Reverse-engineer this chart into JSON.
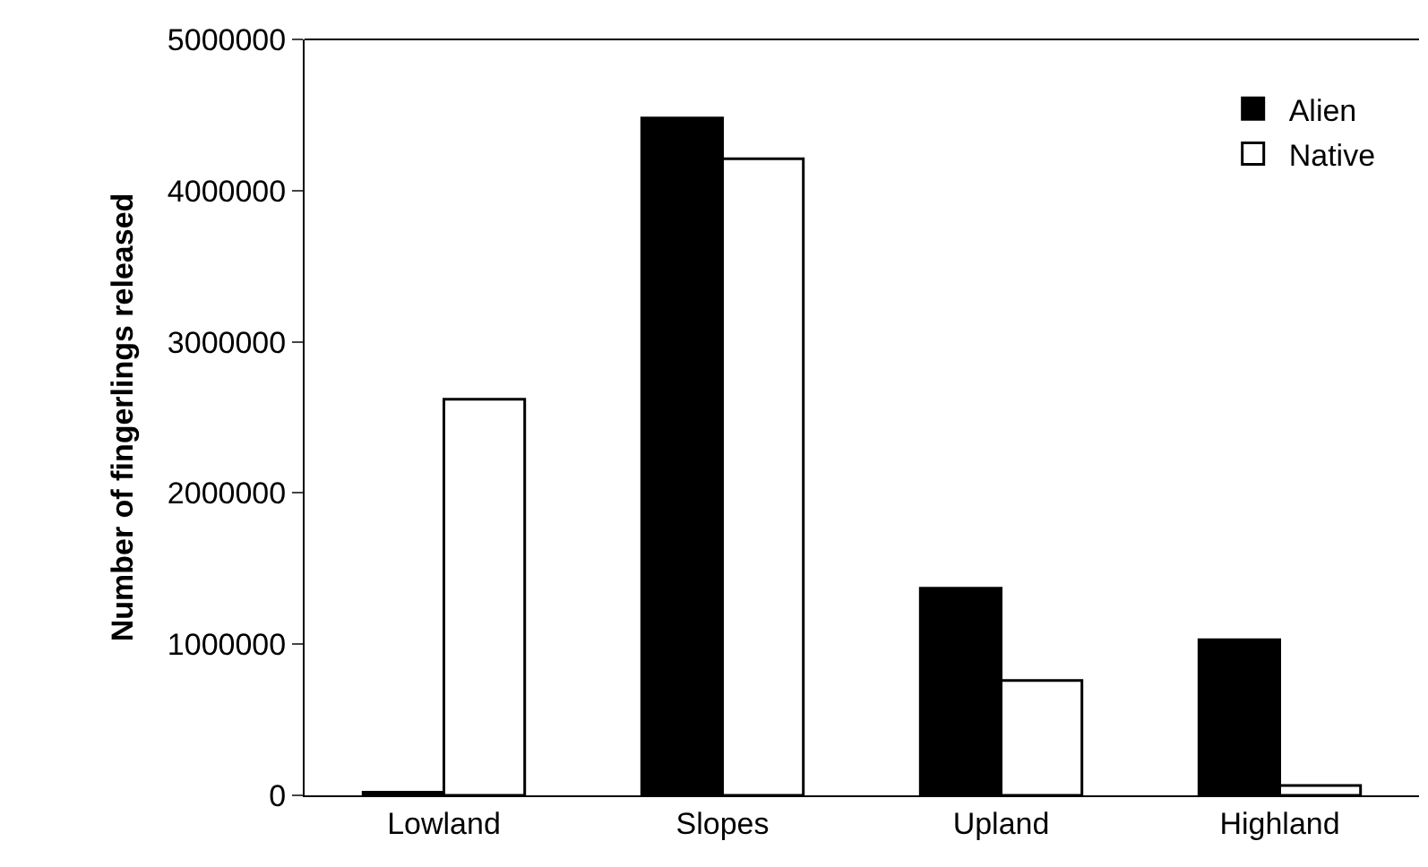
{
  "chart_data": {
    "type": "bar",
    "ylabel": "Number of fingerlings released",
    "categories": [
      "Lowland",
      "Slopes",
      "Upland",
      "Highland"
    ],
    "series": [
      {
        "name": "Alien",
        "color": "#000000",
        "values": [
          20000,
          4480000,
          1370000,
          1030000
        ]
      },
      {
        "name": "Native",
        "color": "#ffffff",
        "values": [
          2620000,
          4210000,
          760000,
          65000
        ]
      }
    ],
    "ylim": [
      0,
      5000000
    ],
    "yticks": [
      0,
      1000000,
      2000000,
      3000000,
      4000000,
      5000000
    ],
    "grid": false,
    "legend": "top right"
  }
}
